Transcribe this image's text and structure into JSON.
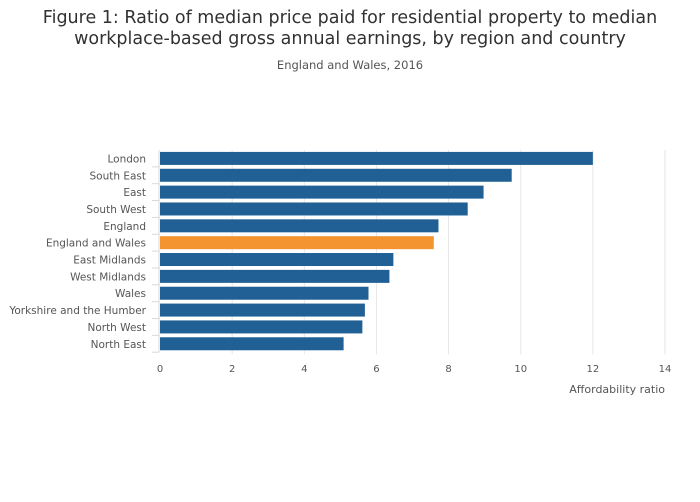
{
  "title": "Figure 1: Ratio of median price paid for residential property to median workplace-based gross annual earnings, by region and country",
  "title_lines": [
    "Figure 1: Ratio of median price paid for residential property to median",
    "workplace-based gross annual earnings, by region and country"
  ],
  "subtitle": "England and Wales, 2016",
  "chart_data": {
    "type": "bar",
    "orientation": "horizontal",
    "categories": [
      "London",
      "South East",
      "East",
      "South West",
      "England",
      "England and Wales",
      "East Midlands",
      "West Midlands",
      "Wales",
      "Yorkshire and the Humber",
      "North West",
      "North East"
    ],
    "values": [
      12.0,
      9.75,
      8.97,
      8.53,
      7.72,
      7.59,
      6.47,
      6.36,
      5.78,
      5.68,
      5.61,
      5.09
    ],
    "highlight": "England and Wales",
    "colors": {
      "bar": "#206095",
      "highlight": "#f39431",
      "grid": "#e6e6e6"
    },
    "xlabel": "Affordability ratio",
    "ylabel": "",
    "xlim": [
      0,
      14
    ],
    "xticks": [
      0,
      2,
      4,
      6,
      8,
      10,
      12,
      14
    ],
    "grid": true,
    "legend": "none"
  }
}
